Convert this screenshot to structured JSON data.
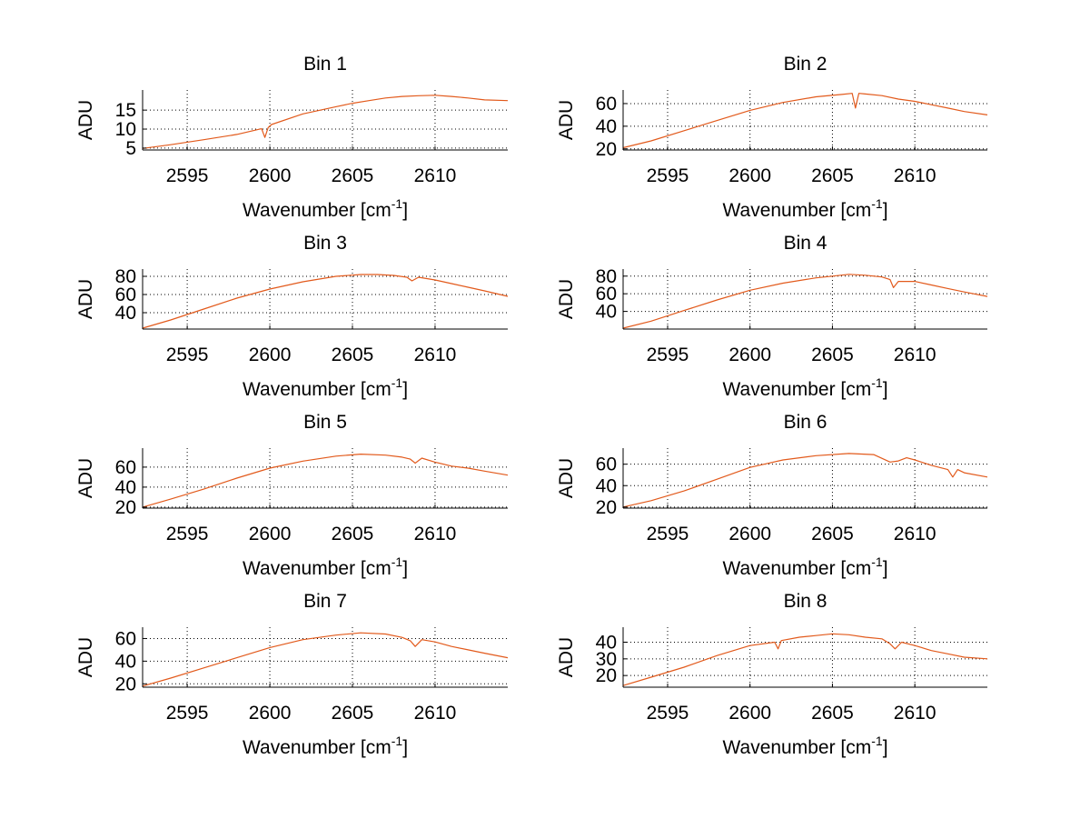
{
  "chart_data": [
    {
      "type": "line",
      "title": "Bin 1",
      "xlabel": "Wavenumber [cm",
      "xlabel_sup": "-1",
      "xlabel_suffix": "]",
      "ylabel": "ADU",
      "xlim": [
        2592.3,
        2614.4
      ],
      "ylim": [
        4.5,
        20.3
      ],
      "xticks": [
        2595,
        2600,
        2605,
        2610
      ],
      "yticks": [
        5,
        10,
        15
      ],
      "grid": true,
      "color": "#E25A1C",
      "series": [
        {
          "x": [
            2592.3,
            2594,
            2596,
            2598,
            2599.5,
            2599.7,
            2599.9,
            2600.1,
            2602,
            2604,
            2605,
            2606,
            2607,
            2608,
            2609,
            2610,
            2611,
            2612,
            2613,
            2614.4
          ],
          "values": [
            4.9,
            5.9,
            7.2,
            8.6,
            10.1,
            7.8,
            10.4,
            11.2,
            14.0,
            15.9,
            16.8,
            17.5,
            18.2,
            18.6,
            18.8,
            18.9,
            18.6,
            18.2,
            17.7,
            17.5
          ]
        }
      ]
    },
    {
      "type": "line",
      "title": "Bin 2",
      "xlabel": "Wavenumber [cm",
      "xlabel_sup": "-1",
      "xlabel_suffix": "]",
      "ylabel": "ADU",
      "xlim": [
        2592.3,
        2614.4
      ],
      "ylim": [
        19,
        72
      ],
      "xticks": [
        2595,
        2600,
        2605,
        2610
      ],
      "yticks": [
        20,
        40,
        60
      ],
      "grid": true,
      "color": "#E25A1C",
      "series": [
        {
          "x": [
            2592.3,
            2594,
            2596,
            2598,
            2600,
            2602,
            2604,
            2605.5,
            2606.2,
            2606.4,
            2606.6,
            2607,
            2608,
            2609,
            2610,
            2611,
            2612,
            2613,
            2614.4
          ],
          "values": [
            21,
            27,
            36,
            45,
            54,
            61,
            66,
            68,
            69,
            56,
            69,
            68.5,
            67,
            64,
            62,
            59,
            56,
            53,
            50
          ]
        }
      ]
    },
    {
      "type": "line",
      "title": "Bin 3",
      "xlabel": "Wavenumber [cm",
      "xlabel_sup": "-1",
      "xlabel_suffix": "]",
      "ylabel": "ADU",
      "xlim": [
        2592.3,
        2614.4
      ],
      "ylim": [
        22,
        88
      ],
      "xticks": [
        2595,
        2600,
        2605,
        2610
      ],
      "yticks": [
        40,
        60,
        80
      ],
      "grid": true,
      "color": "#E25A1C",
      "series": [
        {
          "x": [
            2592.3,
            2594,
            2596,
            2598,
            2600,
            2602,
            2604,
            2605.5,
            2606.5,
            2607.5,
            2608.3,
            2608.6,
            2609,
            2610,
            2611,
            2612,
            2613,
            2614.4
          ],
          "values": [
            23,
            32,
            44,
            56,
            66,
            74,
            80,
            82,
            82,
            81,
            79,
            75,
            79,
            76,
            72,
            68,
            64,
            58
          ]
        }
      ]
    },
    {
      "type": "line",
      "title": "Bin 4",
      "xlabel": "Wavenumber [cm",
      "xlabel_sup": "-1",
      "xlabel_suffix": "]",
      "ylabel": "ADU",
      "xlim": [
        2592.3,
        2614.4
      ],
      "ylim": [
        20,
        88
      ],
      "xticks": [
        2595,
        2600,
        2605,
        2610
      ],
      "yticks": [
        40,
        60,
        80
      ],
      "grid": true,
      "color": "#E25A1C",
      "series": [
        {
          "x": [
            2592.3,
            2594,
            2596,
            2598,
            2600,
            2602,
            2604,
            2605,
            2606,
            2607,
            2608,
            2608.5,
            2608.7,
            2609,
            2610,
            2611,
            2612,
            2613,
            2614.4
          ],
          "values": [
            21,
            29,
            41,
            53,
            64,
            72,
            78,
            80,
            82,
            81,
            79,
            76,
            67,
            74,
            74,
            70,
            66,
            62,
            57
          ]
        }
      ]
    },
    {
      "type": "line",
      "title": "Bin 5",
      "xlabel": "Wavenumber [cm",
      "xlabel_sup": "-1",
      "xlabel_suffix": "]",
      "ylabel": "ADU",
      "xlim": [
        2592.3,
        2614.4
      ],
      "ylim": [
        19,
        79
      ],
      "xticks": [
        2595,
        2600,
        2605,
        2610
      ],
      "yticks": [
        20,
        40,
        60
      ],
      "grid": true,
      "color": "#E25A1C",
      "series": [
        {
          "x": [
            2592.3,
            2594,
            2596,
            2598,
            2600,
            2602,
            2604,
            2605.5,
            2607,
            2608,
            2608.5,
            2608.8,
            2609.2,
            2610,
            2611,
            2612,
            2613,
            2614.4
          ],
          "values": [
            20,
            28,
            38,
            49,
            59,
            66,
            71,
            73,
            72,
            70,
            68,
            64,
            69,
            65,
            61,
            59,
            56,
            52
          ]
        }
      ]
    },
    {
      "type": "line",
      "title": "Bin 6",
      "xlabel": "Wavenumber [cm",
      "xlabel_sup": "-1",
      "xlabel_suffix": "]",
      "ylabel": "ADU",
      "xlim": [
        2592.3,
        2614.4
      ],
      "ylim": [
        19,
        75
      ],
      "xticks": [
        2595,
        2600,
        2605,
        2610
      ],
      "yticks": [
        20,
        40,
        60
      ],
      "grid": true,
      "color": "#E25A1C",
      "series": [
        {
          "x": [
            2592.3,
            2594,
            2596,
            2598,
            2600,
            2602,
            2604,
            2606,
            2607.5,
            2608.5,
            2609,
            2609.5,
            2610,
            2611,
            2612,
            2612.3,
            2612.6,
            2613,
            2614.4
          ],
          "values": [
            20,
            26,
            35,
            46,
            57,
            64,
            68,
            70,
            69,
            62,
            63,
            66,
            64,
            59,
            55,
            48,
            55,
            52,
            48
          ]
        }
      ]
    },
    {
      "type": "line",
      "title": "Bin 7",
      "xlabel": "Wavenumber [cm",
      "xlabel_sup": "-1",
      "xlabel_suffix": "]",
      "ylabel": "ADU",
      "xlim": [
        2592.3,
        2614.4
      ],
      "ylim": [
        17,
        70
      ],
      "xticks": [
        2595,
        2600,
        2605,
        2610
      ],
      "yticks": [
        20,
        40,
        60
      ],
      "grid": true,
      "color": "#E25A1C",
      "series": [
        {
          "x": [
            2592.3,
            2594,
            2596,
            2598,
            2600,
            2602,
            2604,
            2605.5,
            2607,
            2608,
            2608.5,
            2608.8,
            2609.2,
            2610,
            2611,
            2612,
            2613,
            2614.4
          ],
          "values": [
            18,
            25,
            34,
            43,
            52,
            59,
            63,
            65,
            64,
            61,
            58,
            53,
            59,
            57,
            53,
            50,
            47,
            43
          ]
        }
      ]
    },
    {
      "type": "line",
      "title": "Bin 8",
      "xlabel": "Wavenumber [cm",
      "xlabel_sup": "-1",
      "xlabel_suffix": "]",
      "ylabel": "ADU",
      "xlim": [
        2592.3,
        2614.4
      ],
      "ylim": [
        13,
        49
      ],
      "xticks": [
        2595,
        2600,
        2605,
        2610
      ],
      "yticks": [
        20,
        30,
        40
      ],
      "grid": true,
      "color": "#E25A1C",
      "series": [
        {
          "x": [
            2592.3,
            2594,
            2596,
            2598,
            2600,
            2601.5,
            2601.7,
            2601.9,
            2603,
            2604,
            2605,
            2606,
            2607,
            2608,
            2608.5,
            2608.8,
            2609.2,
            2610,
            2611,
            2612,
            2613,
            2614.4
          ],
          "values": [
            14,
            19,
            25,
            32,
            38,
            40,
            36,
            41,
            43,
            44,
            45,
            44.5,
            43,
            42,
            39,
            36,
            40,
            38,
            35,
            33,
            31,
            30
          ]
        }
      ]
    }
  ]
}
